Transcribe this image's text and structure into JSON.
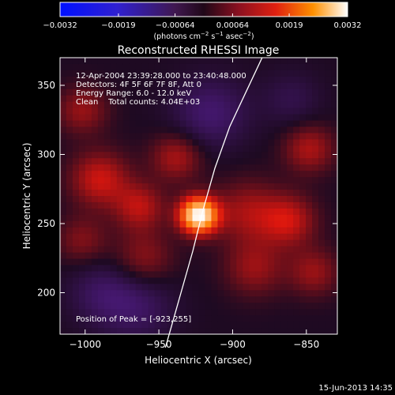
{
  "chart_data": {
    "type": "heatmap",
    "title": "Reconstructed RHESSI Image",
    "xlabel": "Heliocentric X (arcsec)",
    "ylabel": "Heliocentric Y (arcsec)",
    "xlim": [
      -1017,
      -829
    ],
    "ylim": [
      170,
      370
    ],
    "xticks": [
      {
        "value": -1000,
        "label": "−1000"
      },
      {
        "value": -950,
        "label": "−950"
      },
      {
        "value": -900,
        "label": "−900"
      },
      {
        "value": -850,
        "label": "−850"
      }
    ],
    "yticks": [
      {
        "value": 200,
        "label": "200"
      },
      {
        "value": 250,
        "label": "250"
      },
      {
        "value": 300,
        "label": "300"
      },
      {
        "value": 350,
        "label": "350"
      }
    ],
    "annotations": [
      "12-Apr-2004 23:39:28.000 to 23:40:48.000",
      "Detectors: 4F 5F 6F 7F 8F, Att 0",
      "Energy Range: 6.0 - 12.0 keV",
      "Clean    Total counts: 4.04E+03"
    ],
    "peak": {
      "x": -923,
      "y": 255,
      "label": "Position of Peak = [-923,255]"
    },
    "limb_curve": {
      "points": [
        [
          -943,
          170
        ],
        [
          -935,
          200
        ],
        [
          -927,
          230
        ],
        [
          -920,
          260
        ],
        [
          -912,
          290
        ],
        [
          -902,
          320
        ],
        [
          -891,
          345
        ],
        [
          -880,
          370
        ]
      ]
    },
    "sources": [
      {
        "x": -923,
        "y": 256,
        "amp": 1.0,
        "sigma": 9
      },
      {
        "x": -990,
        "y": 282,
        "amp": 0.32,
        "sigma": 14
      },
      {
        "x": -963,
        "y": 262,
        "amp": 0.28,
        "sigma": 12
      },
      {
        "x": -938,
        "y": 298,
        "amp": 0.26,
        "sigma": 12
      },
      {
        "x": -890,
        "y": 258,
        "amp": 0.24,
        "sigma": 16
      },
      {
        "x": -862,
        "y": 252,
        "amp": 0.3,
        "sigma": 13
      },
      {
        "x": -848,
        "y": 304,
        "amp": 0.26,
        "sigma": 12
      },
      {
        "x": -885,
        "y": 218,
        "amp": 0.22,
        "sigma": 14
      },
      {
        "x": -960,
        "y": 225,
        "amp": 0.2,
        "sigma": 14
      },
      {
        "x": -1002,
        "y": 332,
        "amp": 0.22,
        "sigma": 12
      },
      {
        "x": -1002,
        "y": 238,
        "amp": 0.18,
        "sigma": 12
      },
      {
        "x": -845,
        "y": 215,
        "amp": 0.22,
        "sigma": 12
      },
      {
        "x": -915,
        "y": 330,
        "amp": -0.22,
        "sigma": 18
      },
      {
        "x": -965,
        "y": 190,
        "amp": -0.18,
        "sigma": 18
      },
      {
        "x": -990,
        "y": 200,
        "amp": -0.15,
        "sigma": 16
      },
      {
        "x": -860,
        "y": 340,
        "amp": -0.12,
        "sigma": 14
      }
    ],
    "colorbar": {
      "min": -0.0032,
      "max": 0.0032,
      "ticks": [
        {
          "value": -0.0032,
          "label": "−0.0032"
        },
        {
          "value": -0.0019,
          "label": "−0.0019"
        },
        {
          "value": -0.00064,
          "label": "−0.00064"
        },
        {
          "value": 0.00064,
          "label": "0.00064"
        },
        {
          "value": 0.0019,
          "label": "0.0019"
        },
        {
          "value": 0.0032,
          "label": "0.0032"
        }
      ],
      "label_main": "(photons cm",
      "label_sup1": "−2",
      "label_mid1": " s",
      "label_sup2": "−1",
      "label_mid2": " asec",
      "label_sup3": "−2",
      "label_end": ")"
    },
    "colors": {
      "background": "#000000",
      "negative": "#2020ff",
      "zero": "#1a0a22",
      "positive_mid": "#d01010",
      "positive_max": "#ffffff"
    }
  },
  "footer": {
    "timestamp": "15-Jun-2013 14:35"
  }
}
